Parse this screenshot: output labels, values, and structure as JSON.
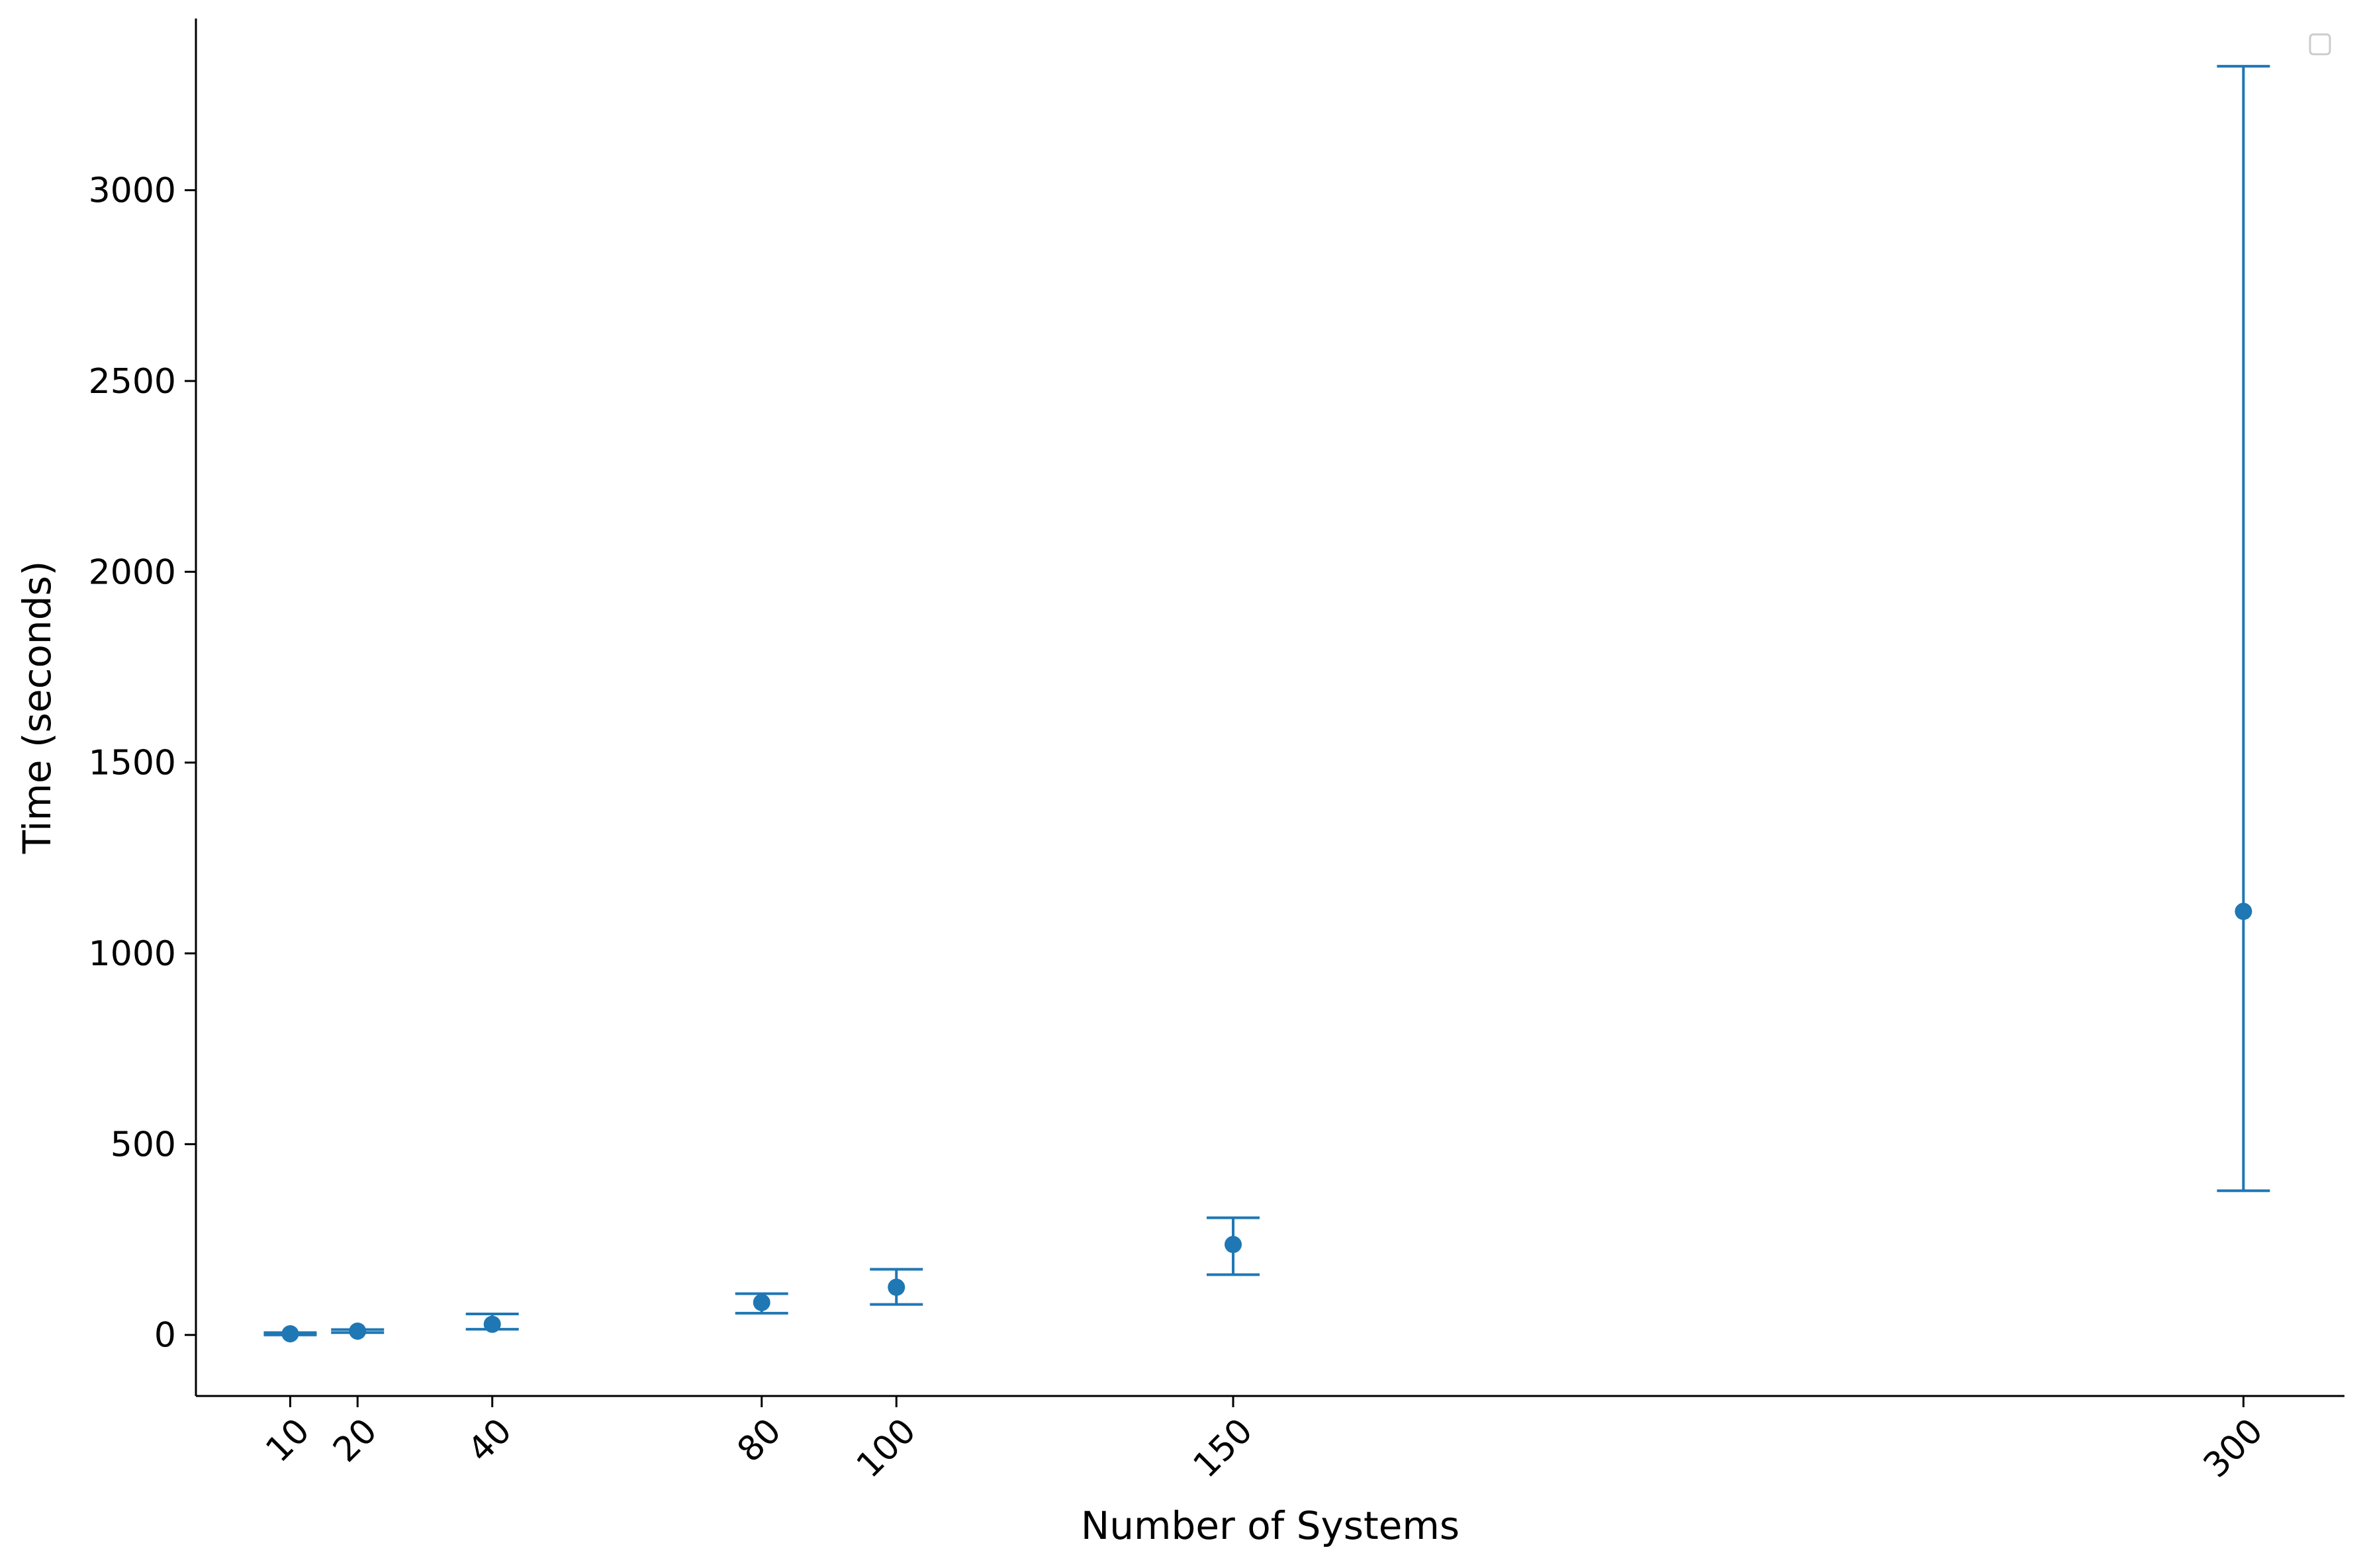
{
  "chart_data": {
    "type": "scatter",
    "title": "",
    "xlabel": "Number of Systems",
    "ylabel": "Time (seconds)",
    "xlim": [
      -4,
      315
    ],
    "ylim": [
      -160,
      3450
    ],
    "x_ticks": [
      10,
      20,
      40,
      80,
      100,
      150,
      300
    ],
    "y_ticks": [
      0,
      500,
      1000,
      1500,
      2000,
      2500,
      3000
    ],
    "grid": false,
    "legend": {
      "placement": "top-right",
      "entries": []
    },
    "color": "#1f77b4",
    "points": [
      {
        "x": 10,
        "y": 3,
        "err_low": 0,
        "err_high": 6
      },
      {
        "x": 20,
        "y": 10,
        "err_low": 6,
        "err_high": 14
      },
      {
        "x": 40,
        "y": 28,
        "err_low": 15,
        "err_high": 55
      },
      {
        "x": 80,
        "y": 85,
        "err_low": 57,
        "err_high": 108
      },
      {
        "x": 100,
        "y": 125,
        "err_low": 80,
        "err_high": 172
      },
      {
        "x": 150,
        "y": 237,
        "err_low": 158,
        "err_high": 307
      },
      {
        "x": 300,
        "y": 1110,
        "err_low": 378,
        "err_high": 3325
      }
    ]
  }
}
